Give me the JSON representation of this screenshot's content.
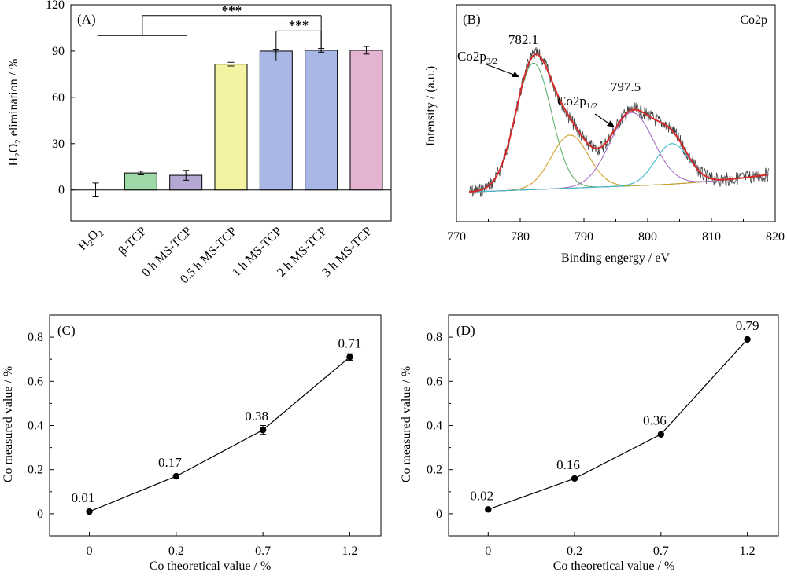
{
  "chart_data": [
    {
      "panel": "(A)",
      "type": "bar",
      "ylabel_main": "H",
      "ylabel_sub": "2",
      "ylabel_mid": "O",
      "ylabel_sub2": "2",
      "ylabel_rest": " elimination / %",
      "ylim": [
        -20,
        120
      ],
      "yticks": [
        0,
        30,
        60,
        90,
        120
      ],
      "categories": [
        {
          "main": "H",
          "sub": "2",
          "mid": "O",
          "sub2": "2"
        },
        {
          "main": "β-TCP"
        },
        {
          "main": "0 h MS-TCP"
        },
        {
          "main": "0.5 h MS-TCP"
        },
        {
          "main": "1 h MS-TCP"
        },
        {
          "main": "2 h MS-TCP"
        },
        {
          "main": "3 h MS-TCP"
        }
      ],
      "values": [
        0,
        11,
        9.5,
        81.5,
        90,
        90.5,
        90.5
      ],
      "errors": [
        4.5,
        1.2,
        3.2,
        1.2,
        1.2,
        1.2,
        2.5
      ],
      "colors": [
        "none",
        "#9fd8a8",
        "#b5a7d4",
        "#f4f3a1",
        "#a9b7e6",
        "#a9b7e6",
        "#e3b3d1"
      ],
      "significance": [
        {
          "label": "***",
          "group_from": 0,
          "group_to": 2,
          "to": 5
        },
        {
          "label": "***",
          "from": 4,
          "to": 5
        }
      ]
    },
    {
      "panel": "(B)",
      "type": "line",
      "title": "Co2p",
      "xlabel": "Binding engergy / eV",
      "ylabel": "Intensity / (a.u.)",
      "xlim": [
        770,
        820
      ],
      "xticks": [
        770,
        780,
        790,
        800,
        810,
        820
      ],
      "peaks": [
        {
          "center": 782.1,
          "label": "782.1",
          "name_main": "Co2p",
          "name_sub": "3/2",
          "color": "#5fae6b"
        },
        {
          "center": 787.8,
          "color": "#d1a02b"
        },
        {
          "center": 797.5,
          "label": "797.5",
          "name_main": "Co2p",
          "name_sub": "1/2",
          "color": "#a56fc2"
        },
        {
          "center": 803.8,
          "color": "#45b8c8"
        }
      ]
    },
    {
      "panel": "(C)",
      "type": "line",
      "xlabel": "Co theoretical value / %",
      "ylabel": "Co measured value / %",
      "categories": [
        "0",
        "0.2",
        "0.7",
        "1.2"
      ],
      "values": [
        0.01,
        0.17,
        0.38,
        0.71
      ],
      "errors": [
        0.0,
        0.0,
        0.02,
        0.015
      ],
      "labels": [
        "0.01",
        "0.17",
        "0.38",
        "0.71"
      ],
      "ylim": [
        -0.1,
        0.9
      ],
      "yticks": [
        0,
        0.2,
        0.4,
        0.6,
        0.8
      ]
    },
    {
      "panel": "(D)",
      "type": "line",
      "xlabel": "Co theoretical value / %",
      "ylabel": "Co measured value / %",
      "categories": [
        "0",
        "0.2",
        "0.7",
        "1.2"
      ],
      "values": [
        0.02,
        0.16,
        0.36,
        0.79
      ],
      "labels": [
        "0.02",
        "0.16",
        "0.36",
        "0.79"
      ],
      "ylim": [
        -0.1,
        0.9
      ],
      "yticks": [
        0,
        0.2,
        0.4,
        0.6,
        0.8
      ]
    }
  ]
}
